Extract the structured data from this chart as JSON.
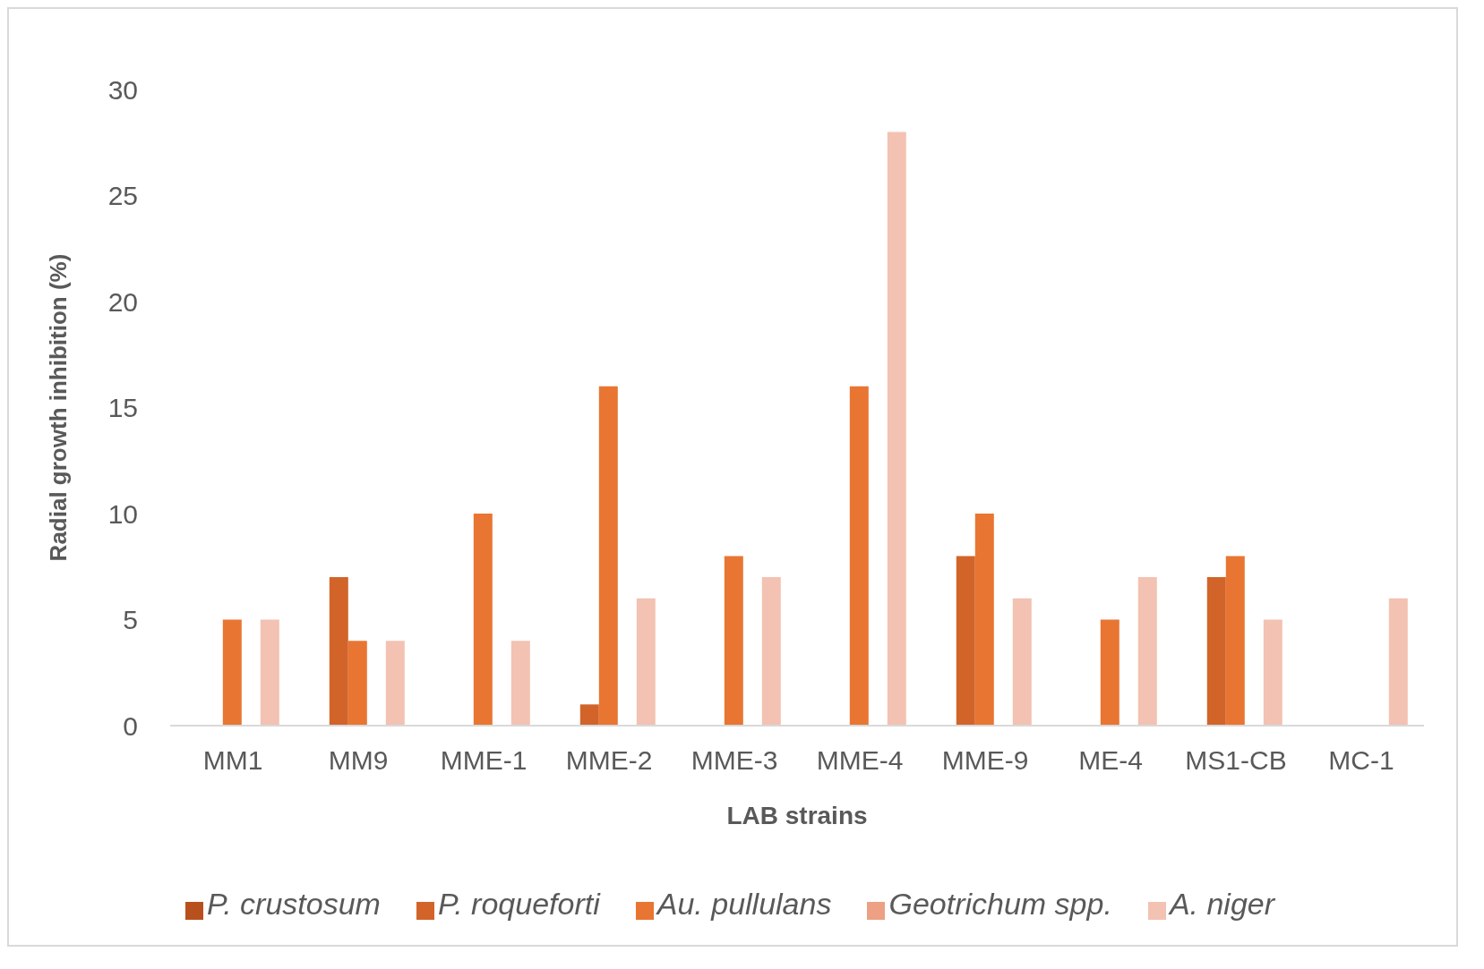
{
  "chart_data": {
    "type": "bar",
    "xlabel": "LAB strains",
    "ylabel": "Radial growth inhibition (%)",
    "categories": [
      "MM1",
      "MM9",
      "MME-1",
      "MME-2",
      "MME-3",
      "MME-4",
      "MME-9",
      "ME-4",
      "MS1-CB",
      "MC-1"
    ],
    "series": [
      {
        "name": "P. crustosum",
        "color": "#b8501e",
        "values": [
          0,
          0,
          0,
          0,
          0,
          0,
          0,
          0,
          0,
          0
        ]
      },
      {
        "name": "P. roqueforti",
        "color": "#d2642a",
        "values": [
          0,
          7,
          0,
          1,
          0,
          0,
          8,
          0,
          7,
          0
        ]
      },
      {
        "name": "Au. pullulans",
        "color": "#e97532",
        "values": [
          5,
          4,
          10,
          16,
          8,
          16,
          10,
          5,
          8,
          0
        ]
      },
      {
        "name": "Geotrichum spp.",
        "color": "#eda084",
        "values": [
          0,
          0,
          0,
          0,
          0,
          0,
          0,
          0,
          0,
          0
        ]
      },
      {
        "name": "A. niger",
        "color": "#f3c2b2",
        "values": [
          5,
          4,
          4,
          6,
          7,
          28,
          6,
          7,
          5,
          6
        ]
      }
    ],
    "ylim": [
      0,
      30
    ],
    "yticks": [
      0,
      5,
      10,
      15,
      20,
      25,
      30
    ],
    "grid": false,
    "legend": "bottom"
  }
}
